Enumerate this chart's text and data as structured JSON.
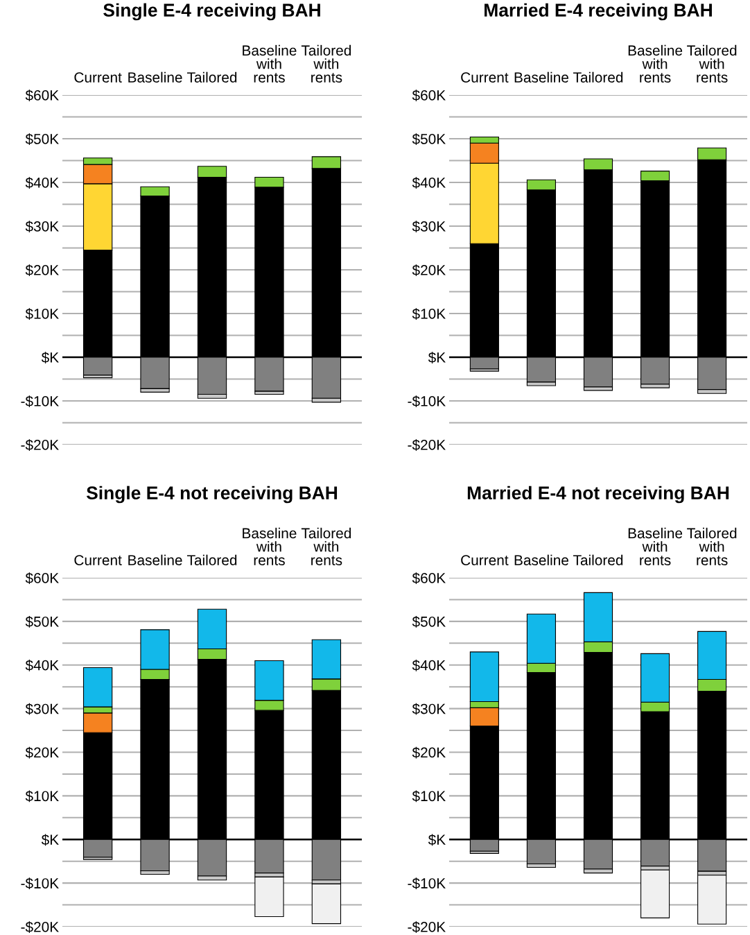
{
  "chart_data": [
    {
      "type": "bar",
      "title": "Single E-4 receiving BAH",
      "stacked": true,
      "grid": "y",
      "legend": false,
      "categories": [
        "Current",
        "Baseline",
        "Tailored",
        "Baseline with rents",
        "Tailored with rents"
      ],
      "ylim": [
        -20,
        60
      ],
      "yticks": [
        {
          "value": -20,
          "label": "-$20K"
        },
        {
          "value": -15,
          "label": null
        },
        {
          "value": -10,
          "label": "-$10K"
        },
        {
          "value": -5,
          "label": null
        },
        {
          "value": 0,
          "label": "$K"
        },
        {
          "value": 5,
          "label": null
        },
        {
          "value": 10,
          "label": "$10K"
        },
        {
          "value": 15,
          "label": null
        },
        {
          "value": 20,
          "label": "$20K"
        },
        {
          "value": 25,
          "label": null
        },
        {
          "value": 30,
          "label": "$30K"
        },
        {
          "value": 35,
          "label": null
        },
        {
          "value": 40,
          "label": "$40K"
        },
        {
          "value": 45,
          "label": null
        },
        {
          "value": 50,
          "label": "$50K"
        },
        {
          "value": 55,
          "label": null
        },
        {
          "value": 60,
          "label": "$60K"
        }
      ],
      "ref_lines": [
        {
          "axis": "y",
          "value": 0,
          "color": "#000000"
        }
      ],
      "series": [
        {
          "color": "#000000",
          "values": [
            24.5,
            36.9,
            41.2,
            38.9,
            43.2
          ]
        },
        {
          "color": "#ffd633",
          "values": [
            15.2,
            null,
            null,
            null,
            null
          ]
        },
        {
          "color": "#f58220",
          "values": [
            4.4,
            null,
            null,
            null,
            null
          ]
        },
        {
          "color": "#7fd13b",
          "values": [
            1.5,
            2.1,
            2.5,
            2.3,
            2.7
          ]
        },
        {
          "color": "#808080",
          "values": [
            -4.1,
            -7.2,
            -8.5,
            -7.8,
            -9.4
          ]
        },
        {
          "color": "#c8c8c8",
          "values": [
            -0.6,
            -0.8,
            -0.9,
            -0.7,
            -0.9
          ]
        }
      ]
    },
    {
      "type": "bar",
      "title": "Married E-4 receiving BAH",
      "stacked": true,
      "grid": "y",
      "legend": false,
      "categories": [
        "Current",
        "Baseline",
        "Tailored",
        "Baseline with rents",
        "Tailored with rents"
      ],
      "ylim": [
        -20,
        60
      ],
      "yticks": [
        {
          "value": -20,
          "label": "-$20K"
        },
        {
          "value": -15,
          "label": null
        },
        {
          "value": -10,
          "label": "-$10K"
        },
        {
          "value": -5,
          "label": null
        },
        {
          "value": 0,
          "label": "$K"
        },
        {
          "value": 5,
          "label": null
        },
        {
          "value": 10,
          "label": "$10K"
        },
        {
          "value": 15,
          "label": null
        },
        {
          "value": 20,
          "label": "$20K"
        },
        {
          "value": 25,
          "label": null
        },
        {
          "value": 30,
          "label": "$30K"
        },
        {
          "value": 35,
          "label": null
        },
        {
          "value": 40,
          "label": "$40K"
        },
        {
          "value": 45,
          "label": null
        },
        {
          "value": 50,
          "label": "$50K"
        },
        {
          "value": 55,
          "label": null
        },
        {
          "value": 60,
          "label": "$60K"
        }
      ],
      "ref_lines": [
        {
          "axis": "y",
          "value": 0,
          "color": "#000000"
        }
      ],
      "series": [
        {
          "color": "#000000",
          "values": [
            26.0,
            38.3,
            42.9,
            40.4,
            45.2
          ]
        },
        {
          "color": "#ffd633",
          "values": [
            18.4,
            null,
            null,
            null,
            null
          ]
        },
        {
          "color": "#f58220",
          "values": [
            4.6,
            null,
            null,
            null,
            null
          ]
        },
        {
          "color": "#7fd13b",
          "values": [
            1.4,
            2.3,
            2.5,
            2.2,
            2.7
          ]
        },
        {
          "color": "#808080",
          "values": [
            -2.7,
            -5.7,
            -6.8,
            -6.2,
            -7.4
          ]
        },
        {
          "color": "#c8c8c8",
          "values": [
            -0.5,
            -0.8,
            -0.8,
            -0.8,
            -0.9
          ]
        }
      ]
    },
    {
      "type": "bar",
      "title": "Single E-4 not receiving BAH",
      "stacked": true,
      "grid": "y",
      "legend": false,
      "categories": [
        "Current",
        "Baseline",
        "Tailored",
        "Baseline with rents",
        "Tailored with rents"
      ],
      "ylim": [
        -20,
        60
      ],
      "yticks": [
        {
          "value": -20,
          "label": "-$20K"
        },
        {
          "value": -15,
          "label": null
        },
        {
          "value": -10,
          "label": "-$10K"
        },
        {
          "value": -5,
          "label": null
        },
        {
          "value": 0,
          "label": "$K"
        },
        {
          "value": 5,
          "label": null
        },
        {
          "value": 10,
          "label": "$10K"
        },
        {
          "value": 15,
          "label": null
        },
        {
          "value": 20,
          "label": "$20K"
        },
        {
          "value": 25,
          "label": null
        },
        {
          "value": 30,
          "label": "$30K"
        },
        {
          "value": 35,
          "label": null
        },
        {
          "value": 40,
          "label": "$40K"
        },
        {
          "value": 45,
          "label": null
        },
        {
          "value": 50,
          "label": "$50K"
        },
        {
          "value": 55,
          "label": null
        },
        {
          "value": 60,
          "label": "$60K"
        }
      ],
      "ref_lines": [
        {
          "axis": "y",
          "value": 0,
          "color": "#000000"
        }
      ],
      "series": [
        {
          "color": "#000000",
          "values": [
            24.5,
            36.7,
            41.3,
            29.6,
            34.2
          ]
        },
        {
          "color": "#f58220",
          "values": [
            4.5,
            null,
            null,
            null,
            null
          ]
        },
        {
          "color": "#7fd13b",
          "values": [
            1.4,
            2.3,
            2.4,
            2.3,
            2.6
          ]
        },
        {
          "color": "#12b8ea",
          "values": [
            9.0,
            9.1,
            9.1,
            9.1,
            9.0
          ]
        },
        {
          "color": "#808080",
          "values": [
            -4.1,
            -7.2,
            -8.4,
            -7.7,
            -9.3
          ]
        },
        {
          "color": "#c8c8c8",
          "values": [
            -0.5,
            -0.8,
            -0.9,
            -0.9,
            -0.9
          ]
        },
        {
          "color": "#f0f0f0",
          "values": [
            null,
            null,
            null,
            -9.1,
            -9.1
          ]
        }
      ]
    },
    {
      "type": "bar",
      "title": "Married E-4 not receiving BAH",
      "stacked": true,
      "grid": "y",
      "legend": false,
      "categories": [
        "Current",
        "Baseline",
        "Tailored",
        "Baseline with rents",
        "Tailored with rents"
      ],
      "ylim": [
        -20,
        60
      ],
      "yticks": [
        {
          "value": -20,
          "label": "-$20K"
        },
        {
          "value": -15,
          "label": null
        },
        {
          "value": -10,
          "label": "-$10K"
        },
        {
          "value": -5,
          "label": null
        },
        {
          "value": 0,
          "label": "$K"
        },
        {
          "value": 5,
          "label": null
        },
        {
          "value": 10,
          "label": "$10K"
        },
        {
          "value": 15,
          "label": null
        },
        {
          "value": 20,
          "label": "$20K"
        },
        {
          "value": 25,
          "label": null
        },
        {
          "value": 30,
          "label": "$30K"
        },
        {
          "value": 35,
          "label": null
        },
        {
          "value": 40,
          "label": "$40K"
        },
        {
          "value": 45,
          "label": null
        },
        {
          "value": 50,
          "label": "$50K"
        },
        {
          "value": 55,
          "label": null
        },
        {
          "value": 60,
          "label": "$60K"
        }
      ],
      "ref_lines": [
        {
          "axis": "y",
          "value": 0,
          "color": "#000000"
        }
      ],
      "series": [
        {
          "color": "#000000",
          "values": [
            26.0,
            38.3,
            42.9,
            29.3,
            34.0
          ]
        },
        {
          "color": "#f58220",
          "values": [
            4.2,
            null,
            null,
            null,
            null
          ]
        },
        {
          "color": "#7fd13b",
          "values": [
            1.4,
            2.1,
            2.4,
            2.2,
            2.7
          ]
        },
        {
          "color": "#12b8ea",
          "values": [
            11.4,
            11.3,
            11.3,
            11.1,
            11.0
          ]
        },
        {
          "color": "#808080",
          "values": [
            -2.7,
            -5.6,
            -6.8,
            -6.1,
            -7.3
          ]
        },
        {
          "color": "#c8c8c8",
          "values": [
            -0.5,
            -0.8,
            -0.9,
            -0.9,
            -0.9
          ]
        },
        {
          "color": "#f0f0f0",
          "values": [
            null,
            null,
            null,
            -11.0,
            -11.2
          ]
        }
      ]
    }
  ]
}
